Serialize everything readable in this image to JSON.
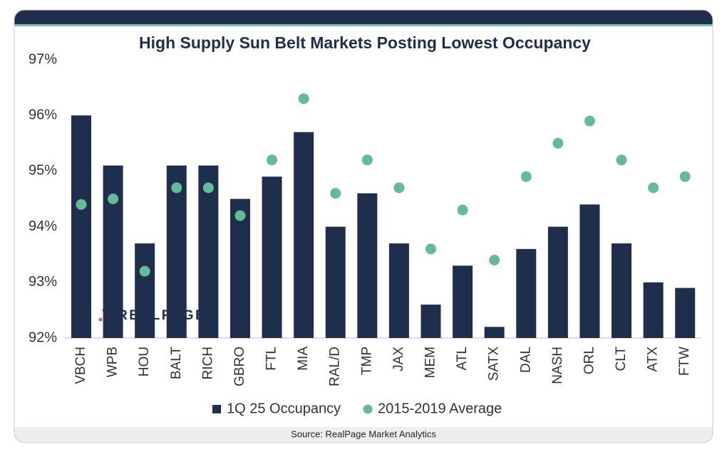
{
  "chart_data": {
    "type": "bar",
    "title": "High Supply Sun Belt Markets Posting Lowest Occupancy",
    "source": "Source: RealPage Market Analytics",
    "logo_text": "REALPAGE",
    "categories": [
      "VBCH",
      "WPB",
      "HOU",
      "BALT",
      "RICH",
      "GBRO",
      "FTL",
      "MIA",
      "RAL/D",
      "TMP",
      "JAX",
      "MEM",
      "ATL",
      "SATX",
      "DAL",
      "NASH",
      "ORL",
      "CLT",
      "ATX",
      "FTW"
    ],
    "series": [
      {
        "name": "1Q 25 Occupancy",
        "type": "bar",
        "color": "#1f2e4d",
        "values": [
          96.0,
          95.1,
          93.7,
          95.1,
          95.1,
          94.5,
          94.9,
          95.7,
          94.0,
          94.6,
          93.7,
          92.6,
          93.3,
          92.2,
          93.6,
          94.0,
          94.4,
          93.7,
          93.0,
          92.9
        ]
      },
      {
        "name": "2015-2019 Average",
        "type": "scatter",
        "color": "#66bb97",
        "values": [
          94.4,
          94.5,
          93.2,
          94.7,
          94.7,
          94.2,
          95.2,
          96.3,
          94.6,
          95.2,
          94.7,
          93.6,
          94.3,
          93.4,
          94.9,
          95.5,
          95.9,
          95.2,
          94.7,
          94.9
        ]
      }
    ],
    "ylim": [
      92,
      97
    ],
    "yticks": [
      {
        "value": 92,
        "label": "92%"
      },
      {
        "value": 93,
        "label": "93%"
      },
      {
        "value": 94,
        "label": "94%"
      },
      {
        "value": 95,
        "label": "95%"
      },
      {
        "value": 96,
        "label": "96%"
      },
      {
        "value": 97,
        "label": "97%"
      }
    ],
    "grid": false,
    "legend": "bottom"
  }
}
